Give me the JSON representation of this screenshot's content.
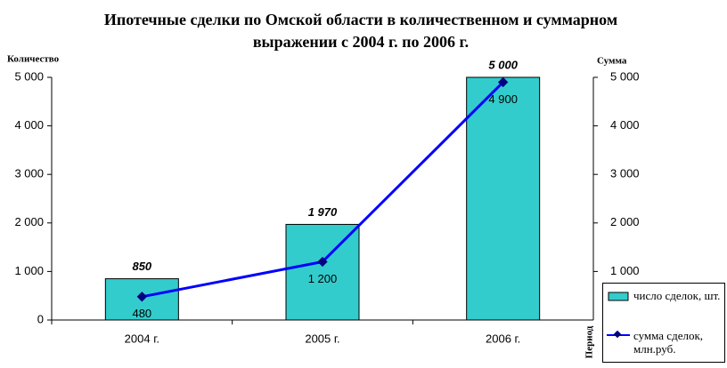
{
  "chart_data": {
    "type": "bar_line",
    "title": "Ипотечные сделки по Омской области в количественном и суммарном выражении с 2004 г. по 2006 г.",
    "y_label": "Количество",
    "y2_label": "Сумма",
    "x_label": "Период",
    "categories": [
      "2004 г.",
      "2005 г.",
      "2006 г."
    ],
    "series": [
      {
        "name": "число сделок, шт.",
        "type": "bar",
        "color": "#33cccc",
        "values": [
          850,
          1970,
          5000
        ],
        "value_labels": [
          "850",
          "1 970",
          "5 000"
        ]
      },
      {
        "name": "сумма сделок, млн.руб.",
        "type": "line",
        "axis": "y2",
        "color": "#0000ff",
        "values": [
          480,
          1200,
          4900
        ],
        "value_labels": [
          "480",
          "1 200",
          "4 900"
        ]
      }
    ],
    "ylim": [
      0,
      5000
    ],
    "yticks": [
      0,
      {
        "value": 1000,
        "label": "1 000"
      },
      {
        "value": 2000,
        "label": "2 000"
      },
      {
        "value": 3000,
        "label": "3 000"
      },
      {
        "value": 4000,
        "label": "4 000"
      },
      {
        "value": 5000,
        "label": "5 000"
      }
    ],
    "y2lim": [
      0,
      5000
    ],
    "y2ticks": [
      {
        "value": 1000,
        "label": "1 000"
      },
      {
        "value": 2000,
        "label": "2 000"
      },
      {
        "value": 3000,
        "label": "3 000"
      },
      {
        "value": 4000,
        "label": "4 000"
      },
      {
        "value": 5000,
        "label": "5 000"
      }
    ]
  }
}
